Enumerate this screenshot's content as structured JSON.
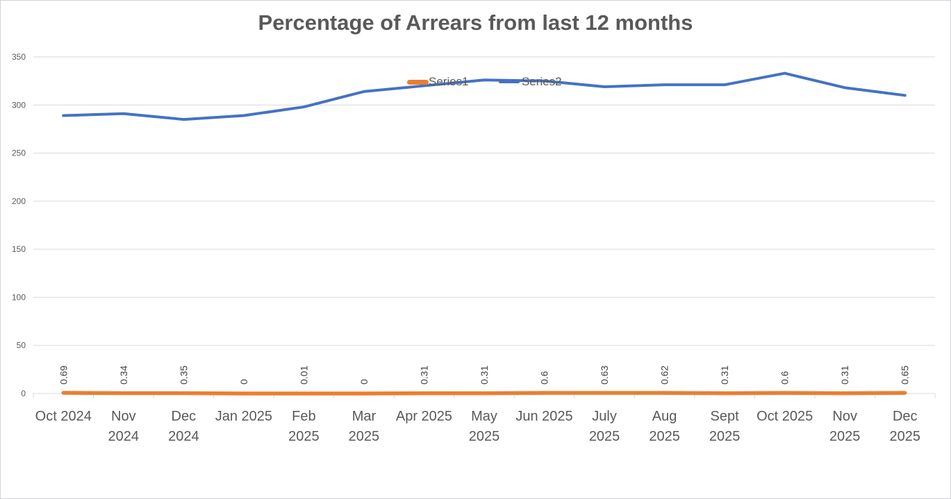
{
  "chart_data": {
    "type": "line",
    "title": "Percentage of Arrears from last 12 months",
    "categories": [
      "Oct 2024",
      "Nov 2024",
      "Dec 2024",
      "Jan 2025",
      "Feb 2025",
      "Mar 2025",
      "Apr 2025",
      "May 2025",
      "Jun 2025",
      "July 2025",
      "Aug 2025",
      "Sept 2025",
      "Oct 2025",
      "Nov 2025",
      "Dec 2025"
    ],
    "category_label_lines": [
      [
        "Oct 2024"
      ],
      [
        "Nov",
        "2024"
      ],
      [
        "Dec",
        "2024"
      ],
      [
        "Jan 2025"
      ],
      [
        "Feb",
        "2025"
      ],
      [
        "Mar",
        "2025"
      ],
      [
        "Apr 2025"
      ],
      [
        "May",
        "2025"
      ],
      [
        "Jun 2025"
      ],
      [
        "July",
        "2025"
      ],
      [
        "Aug",
        "2025"
      ],
      [
        "Sept",
        "2025"
      ],
      [
        "Oct 2025"
      ],
      [
        "Nov",
        "2025"
      ],
      [
        "Dec",
        "2025"
      ]
    ],
    "series": [
      {
        "name": "Series1",
        "color": "#ED7D31",
        "values": [
          0.69,
          0.34,
          0.35,
          0,
          0.01,
          0,
          0.31,
          0.31,
          0.6,
          0.63,
          0.62,
          0.31,
          0.6,
          0.31,
          0.65
        ],
        "data_labels": [
          "0.69",
          "0.34",
          "0.35",
          "0",
          "0.01",
          "0",
          "0.31",
          "0.31",
          "0.6",
          "0.63",
          "0.62",
          "0.31",
          "0.6",
          "0.31",
          "0.65"
        ]
      },
      {
        "name": "Series2",
        "color": "#4472C4",
        "values": [
          289,
          291,
          285,
          289,
          298,
          314,
          320,
          326,
          325,
          319,
          321,
          321,
          333,
          318,
          310
        ]
      }
    ],
    "xlabel": "",
    "ylabel": "",
    "ylim": [
      0,
      350
    ],
    "yticks": [
      0,
      50,
      100,
      150,
      200,
      250,
      300,
      350
    ],
    "grid": true,
    "legend_position": "inside-top-middle",
    "colors": {
      "series1": "#ED7D31",
      "series2": "#4472C4",
      "gridline": "#D9D9D9",
      "axis_text": "#595959",
      "title_text": "#595959",
      "legend_text": "#595959",
      "data_label_text": "#404040",
      "background": "#FFFFFF",
      "border": "#D0D0D6"
    }
  }
}
